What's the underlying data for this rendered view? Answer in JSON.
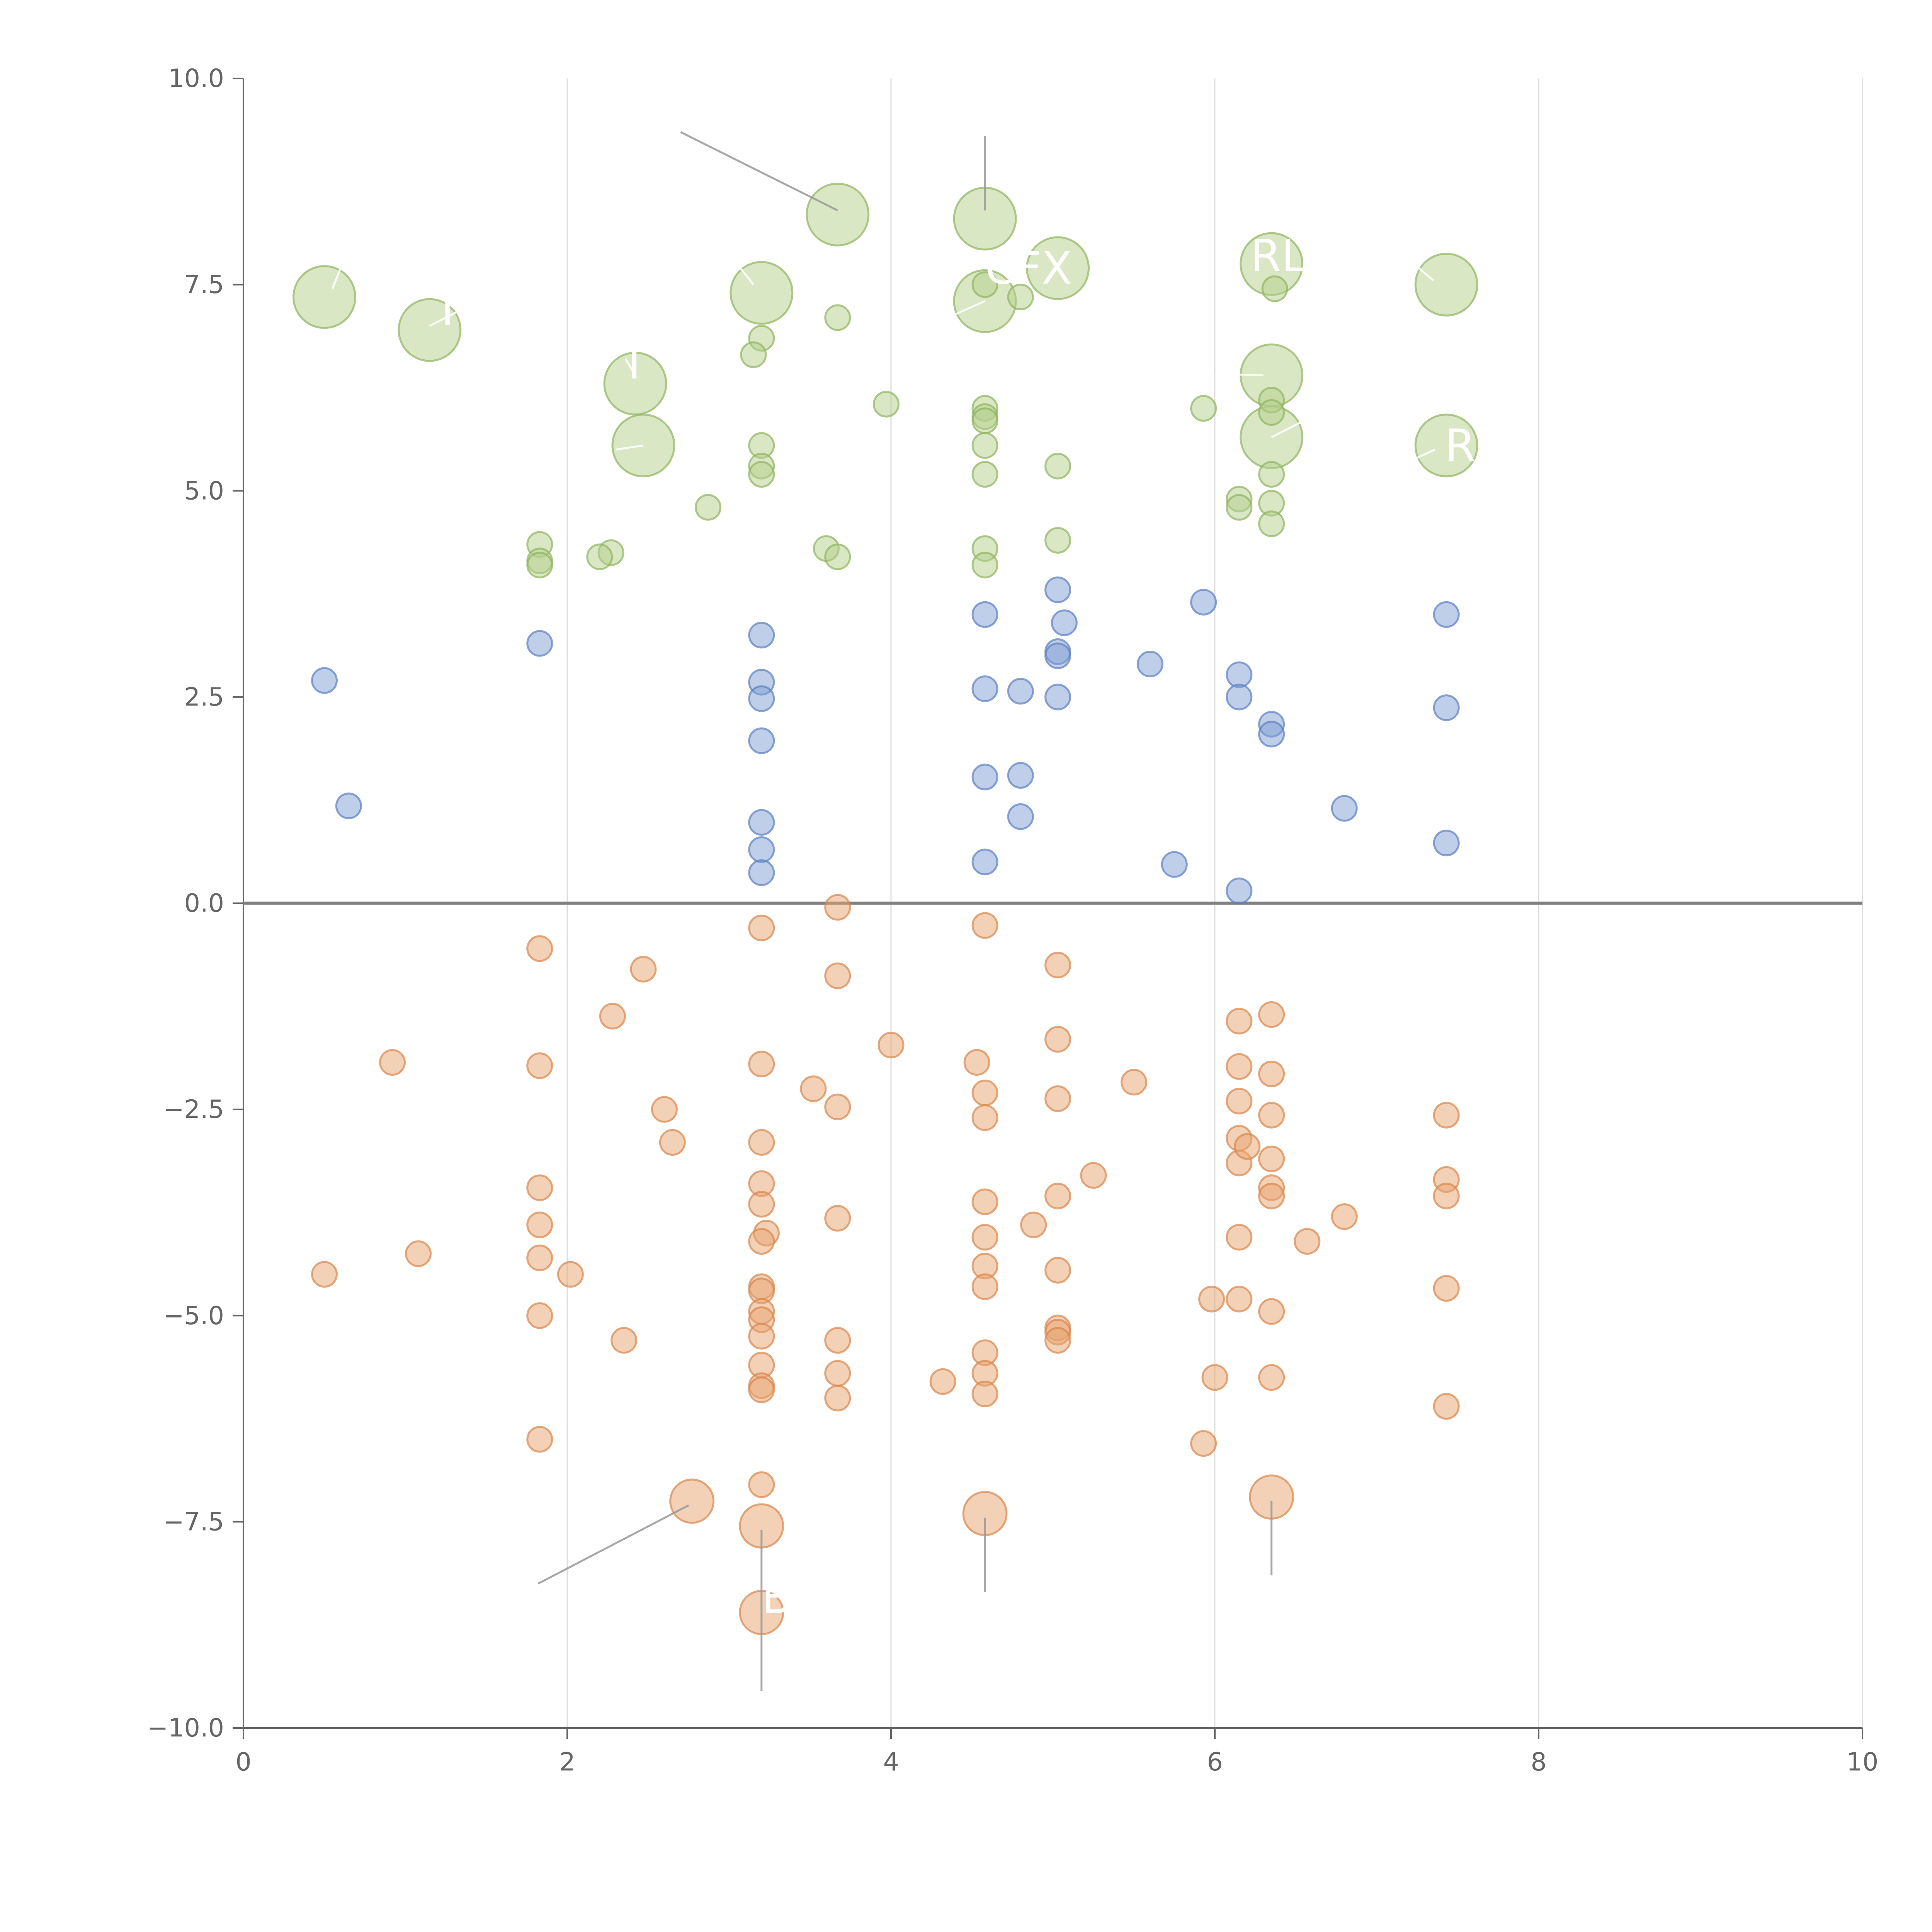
{
  "chart_data": {
    "type": "scatter",
    "title": "",
    "xlabel": "",
    "ylabel": "",
    "xlim": [
      0,
      10
    ],
    "ylim": [
      -10,
      10
    ],
    "xticks": [
      0,
      2,
      4,
      6,
      8,
      10
    ],
    "yticks": [
      -10,
      -7.5,
      -5,
      -2.5,
      0,
      2.5,
      5,
      7.5,
      10
    ],
    "grid": {
      "vertical": true,
      "horizontal": false
    },
    "zero_line": true,
    "colors": {
      "green_fill": "#b4cf8c",
      "green_stroke": "#8fb35e",
      "blue_fill": "#7f9fd3",
      "blue_stroke": "#5b7fc0",
      "orange_fill": "#e8a36f",
      "orange_stroke": "#d9864a",
      "axis": "#666666",
      "grid": "#dddddd",
      "zero": "#808080",
      "leader": "#999999",
      "label": "#ffffff"
    },
    "series": [
      {
        "color_key": "green",
        "points": [
          [
            0.5,
            7.35,
            50
          ],
          [
            1.15,
            6.95,
            50
          ],
          [
            2.42,
            6.3,
            50
          ],
          [
            2.47,
            5.55,
            50
          ],
          [
            3.2,
            7.4,
            50
          ],
          [
            3.67,
            8.35,
            50
          ],
          [
            4.58,
            8.3,
            50
          ],
          [
            4.58,
            7.3,
            50
          ],
          [
            5.03,
            7.7,
            50
          ],
          [
            6.35,
            7.75,
            50
          ],
          [
            6.35,
            6.4,
            50
          ],
          [
            6.35,
            5.65,
            50
          ],
          [
            7.43,
            7.5,
            50
          ],
          [
            7.43,
            5.55,
            50
          ],
          [
            3.67,
            7.1,
            20
          ],
          [
            3.2,
            6.85,
            20
          ],
          [
            3.15,
            6.65,
            20
          ],
          [
            3.97,
            6.05,
            20
          ],
          [
            4.58,
            7.5,
            20
          ],
          [
            4.8,
            7.35,
            20
          ],
          [
            6.37,
            7.45,
            20
          ],
          [
            4.58,
            6.0,
            20
          ],
          [
            4.58,
            5.9,
            20
          ],
          [
            4.58,
            5.85,
            20
          ],
          [
            4.58,
            5.55,
            20
          ],
          [
            4.58,
            5.2,
            20
          ],
          [
            4.58,
            4.3,
            20
          ],
          [
            4.58,
            4.1,
            20
          ],
          [
            5.03,
            5.3,
            20
          ],
          [
            5.03,
            4.4,
            20
          ],
          [
            5.93,
            6.0,
            20
          ],
          [
            6.35,
            6.1,
            20
          ],
          [
            6.35,
            5.95,
            20
          ],
          [
            6.35,
            5.2,
            20
          ],
          [
            6.35,
            4.85,
            20
          ],
          [
            6.35,
            4.6,
            20
          ],
          [
            6.15,
            4.9,
            20
          ],
          [
            6.15,
            4.8,
            20
          ],
          [
            3.2,
            5.55,
            20
          ],
          [
            3.2,
            5.3,
            20
          ],
          [
            3.2,
            5.2,
            20
          ],
          [
            2.87,
            4.8,
            20
          ],
          [
            1.83,
            4.35,
            20
          ],
          [
            1.83,
            4.15,
            20
          ],
          [
            1.83,
            4.1,
            20
          ],
          [
            2.27,
            4.25,
            20
          ],
          [
            2.2,
            4.2,
            20
          ],
          [
            3.6,
            4.3,
            20
          ],
          [
            3.67,
            4.2,
            20
          ]
        ]
      },
      {
        "color_key": "blue",
        "points": [
          [
            0.5,
            2.7,
            20
          ],
          [
            0.65,
            1.18,
            20
          ],
          [
            1.83,
            3.15,
            20
          ],
          [
            3.2,
            3.25,
            20
          ],
          [
            3.2,
            2.68,
            20
          ],
          [
            3.2,
            2.48,
            20
          ],
          [
            3.2,
            1.97,
            20
          ],
          [
            3.2,
            0.98,
            20
          ],
          [
            3.2,
            0.65,
            20
          ],
          [
            3.2,
            0.37,
            20
          ],
          [
            4.58,
            3.5,
            20
          ],
          [
            4.58,
            2.6,
            20
          ],
          [
            4.58,
            1.53,
            20
          ],
          [
            4.58,
            0.5,
            20
          ],
          [
            4.8,
            2.57,
            20
          ],
          [
            4.8,
            1.55,
            20
          ],
          [
            4.8,
            1.05,
            20
          ],
          [
            5.03,
            3.8,
            20
          ],
          [
            5.07,
            3.4,
            20
          ],
          [
            5.03,
            3.05,
            20
          ],
          [
            5.03,
            3.0,
            20
          ],
          [
            5.03,
            2.5,
            20
          ],
          [
            5.6,
            2.9,
            20
          ],
          [
            5.93,
            3.65,
            20
          ],
          [
            5.75,
            0.47,
            20
          ],
          [
            6.15,
            2.77,
            20
          ],
          [
            6.15,
            2.5,
            20
          ],
          [
            6.15,
            0.15,
            20
          ],
          [
            6.35,
            2.17,
            20
          ],
          [
            6.35,
            2.05,
            20
          ],
          [
            6.8,
            1.15,
            20
          ],
          [
            7.43,
            3.5,
            20
          ],
          [
            7.43,
            2.37,
            20
          ],
          [
            7.43,
            0.73,
            20
          ]
        ]
      },
      {
        "color_key": "orange",
        "points": [
          [
            0.5,
            -4.5,
            20
          ],
          [
            0.92,
            -1.93,
            20
          ],
          [
            1.08,
            -4.25,
            20
          ],
          [
            1.83,
            -0.55,
            20
          ],
          [
            1.83,
            -1.97,
            20
          ],
          [
            1.83,
            -3.45,
            20
          ],
          [
            1.83,
            -3.9,
            20
          ],
          [
            1.83,
            -4.3,
            20
          ],
          [
            1.83,
            -5.0,
            20
          ],
          [
            1.83,
            -6.5,
            20
          ],
          [
            2.02,
            -4.5,
            20
          ],
          [
            2.28,
            -1.37,
            20
          ],
          [
            2.35,
            -5.3,
            20
          ],
          [
            2.47,
            -0.8,
            20
          ],
          [
            2.6,
            -2.5,
            20
          ],
          [
            2.65,
            -2.9,
            20
          ],
          [
            3.2,
            -0.3,
            20
          ],
          [
            3.2,
            -1.95,
            20
          ],
          [
            3.2,
            -2.9,
            20
          ],
          [
            3.2,
            -3.4,
            20
          ],
          [
            3.2,
            -3.65,
            20
          ],
          [
            3.23,
            -4.0,
            20
          ],
          [
            3.2,
            -4.1,
            20
          ],
          [
            3.2,
            -4.65,
            20
          ],
          [
            3.2,
            -4.7,
            20
          ],
          [
            3.2,
            -4.95,
            20
          ],
          [
            3.2,
            -5.05,
            20
          ],
          [
            3.2,
            -5.25,
            20
          ],
          [
            3.2,
            -5.6,
            20
          ],
          [
            3.2,
            -5.85,
            20
          ],
          [
            3.2,
            -5.9,
            20
          ],
          [
            3.2,
            -7.05,
            20
          ],
          [
            3.52,
            -2.25,
            20
          ],
          [
            3.67,
            -0.05,
            20
          ],
          [
            3.67,
            -0.88,
            20
          ],
          [
            3.67,
            -2.47,
            20
          ],
          [
            3.67,
            -3.82,
            20
          ],
          [
            3.67,
            -5.3,
            20
          ],
          [
            3.67,
            -5.7,
            20
          ],
          [
            3.67,
            -6.0,
            20
          ],
          [
            4.0,
            -1.72,
            20
          ],
          [
            4.32,
            -5.8,
            20
          ],
          [
            4.53,
            -1.93,
            20
          ],
          [
            4.58,
            -0.27,
            20
          ],
          [
            4.58,
            -2.3,
            20
          ],
          [
            4.58,
            -2.6,
            20
          ],
          [
            4.58,
            -3.62,
            20
          ],
          [
            4.58,
            -4.05,
            20
          ],
          [
            4.58,
            -4.4,
            20
          ],
          [
            4.58,
            -4.65,
            20
          ],
          [
            4.58,
            -5.45,
            20
          ],
          [
            4.58,
            -5.7,
            20
          ],
          [
            4.58,
            -5.95,
            20
          ],
          [
            4.88,
            -3.9,
            20
          ],
          [
            5.03,
            -0.75,
            20
          ],
          [
            5.03,
            -1.65,
            20
          ],
          [
            5.03,
            -2.37,
            20
          ],
          [
            5.03,
            -3.55,
            20
          ],
          [
            5.03,
            -4.45,
            20
          ],
          [
            5.03,
            -5.15,
            20
          ],
          [
            5.03,
            -5.2,
            20
          ],
          [
            5.03,
            -5.3,
            20
          ],
          [
            5.25,
            -3.3,
            20
          ],
          [
            5.5,
            -2.17,
            20
          ],
          [
            5.93,
            -6.55,
            20
          ],
          [
            5.98,
            -4.8,
            20
          ],
          [
            6.0,
            -5.75,
            20
          ],
          [
            6.15,
            -1.43,
            20
          ],
          [
            6.15,
            -1.98,
            20
          ],
          [
            6.15,
            -2.4,
            20
          ],
          [
            6.15,
            -2.85,
            20
          ],
          [
            6.15,
            -3.15,
            20
          ],
          [
            6.15,
            -4.05,
            20
          ],
          [
            6.15,
            -4.8,
            20
          ],
          [
            6.2,
            -2.95,
            20
          ],
          [
            6.35,
            -1.35,
            20
          ],
          [
            6.35,
            -2.07,
            20
          ],
          [
            6.35,
            -2.57,
            20
          ],
          [
            6.35,
            -3.1,
            20
          ],
          [
            6.35,
            -3.45,
            20
          ],
          [
            6.35,
            -3.55,
            20
          ],
          [
            6.35,
            -4.95,
            20
          ],
          [
            6.35,
            -5.75,
            20
          ],
          [
            6.57,
            -4.1,
            20
          ],
          [
            6.8,
            -3.8,
            20
          ],
          [
            7.43,
            -2.57,
            20
          ],
          [
            7.43,
            -3.35,
            20
          ],
          [
            7.43,
            -3.55,
            20
          ],
          [
            7.43,
            -4.67,
            20
          ],
          [
            7.43,
            -6.1,
            20
          ],
          [
            2.77,
            -7.25,
            35
          ],
          [
            3.2,
            -7.55,
            35
          ],
          [
            3.2,
            -8.6,
            35
          ],
          [
            4.58,
            -7.4,
            35
          ],
          [
            6.35,
            -7.2,
            35
          ]
        ]
      }
    ],
    "annotations": [
      {
        "text": "IV",
        "x": 1.22,
        "y": 7.2
      },
      {
        "text": "T",
        "x": 2.33,
        "y": 6.55
      },
      {
        "text": "CFX",
        "x": 4.58,
        "y": 7.7
      },
      {
        "text": "RL",
        "x": 6.22,
        "y": 7.85
      },
      {
        "text": "R",
        "x": 7.42,
        "y": 5.55
      },
      {
        "text": "B",
        "x": 3.2,
        "y": -8.42
      }
    ],
    "leader_lines": [
      {
        "from": [
          2.7,
          9.35
        ],
        "to": [
          3.67,
          8.4
        ],
        "color_key": "leader"
      },
      {
        "from": [
          4.58,
          9.3
        ],
        "to": [
          4.58,
          8.4
        ],
        "color_key": "leader"
      },
      {
        "from": [
          1.82,
          -8.25
        ],
        "to": [
          2.75,
          -7.3
        ],
        "color_key": "leader"
      },
      {
        "from": [
          3.2,
          -7.6
        ],
        "to": [
          3.2,
          -9.55
        ],
        "color_key": "leader"
      },
      {
        "from": [
          4.58,
          -7.45
        ],
        "to": [
          4.58,
          -8.35
        ],
        "color_key": "leader"
      },
      {
        "from": [
          6.35,
          -7.25
        ],
        "to": [
          6.35,
          -8.15
        ],
        "color_key": "leader"
      },
      {
        "from": [
          0.55,
          7.45
        ],
        "to": [
          0.62,
          7.8
        ],
        "color_key": "label"
      },
      {
        "from": [
          1.15,
          7.0
        ],
        "to": [
          1.35,
          7.2
        ],
        "color_key": "label"
      },
      {
        "from": [
          2.42,
          6.4
        ],
        "to": [
          2.36,
          6.6
        ],
        "color_key": "label"
      },
      {
        "from": [
          3.15,
          7.5
        ],
        "to": [
          3.05,
          7.75
        ],
        "color_key": "label"
      },
      {
        "from": [
          2.47,
          5.55
        ],
        "to": [
          2.3,
          5.5
        ],
        "color_key": "label"
      },
      {
        "from": [
          4.58,
          7.3
        ],
        "to": [
          4.35,
          7.1
        ],
        "color_key": "label"
      },
      {
        "from": [
          6.3,
          6.4
        ],
        "to": [
          6.0,
          6.42
        ],
        "color_key": "label"
      },
      {
        "from": [
          6.35,
          5.65
        ],
        "to": [
          6.55,
          5.85
        ],
        "color_key": "label"
      },
      {
        "from": [
          7.35,
          7.55
        ],
        "to": [
          7.2,
          7.8
        ],
        "color_key": "label"
      },
      {
        "from": [
          7.36,
          5.5
        ],
        "to": [
          7.25,
          5.4
        ],
        "color_key": "label"
      }
    ]
  }
}
